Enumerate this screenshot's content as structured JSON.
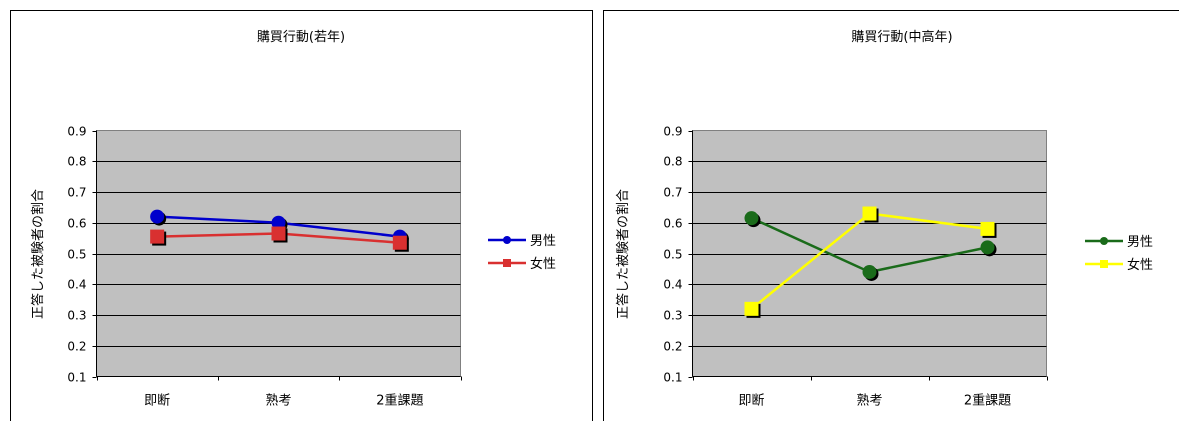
{
  "chart_data": [
    {
      "type": "line",
      "title": "購買行動(若年)",
      "xlabel": "",
      "ylabel": "正答した被験者の割合",
      "ylim": [
        0.1,
        0.9
      ],
      "yticks": [
        "0.1",
        "0.2",
        "0.3",
        "0.4",
        "0.5",
        "0.6",
        "0.7",
        "0.8",
        "0.9"
      ],
      "categories": [
        "即断",
        "熟考",
        "2重課題"
      ],
      "grid": true,
      "legend": "right",
      "series": [
        {
          "name": "男性",
          "values": [
            0.62,
            0.6,
            0.555
          ],
          "color": "#0000cc",
          "marker": "circle"
        },
        {
          "name": "女性",
          "values": [
            0.555,
            0.565,
            0.535
          ],
          "color": "#d93030",
          "marker": "square"
        }
      ]
    },
    {
      "type": "line",
      "title": "購買行動(中高年)",
      "xlabel": "",
      "ylabel": "正答した被験者の割合",
      "ylim": [
        0.1,
        0.9
      ],
      "yticks": [
        "0.1",
        "0.2",
        "0.3",
        "0.4",
        "0.5",
        "0.6",
        "0.7",
        "0.8",
        "0.9"
      ],
      "categories": [
        "即断",
        "熟考",
        "2重課題"
      ],
      "grid": true,
      "legend": "right",
      "series": [
        {
          "name": "男性",
          "values": [
            0.615,
            0.44,
            0.52
          ],
          "color": "#1a6b1a",
          "marker": "circle"
        },
        {
          "name": "女性",
          "values": [
            0.32,
            0.63,
            0.58
          ],
          "color": "#ffff00",
          "marker": "square"
        }
      ]
    }
  ]
}
